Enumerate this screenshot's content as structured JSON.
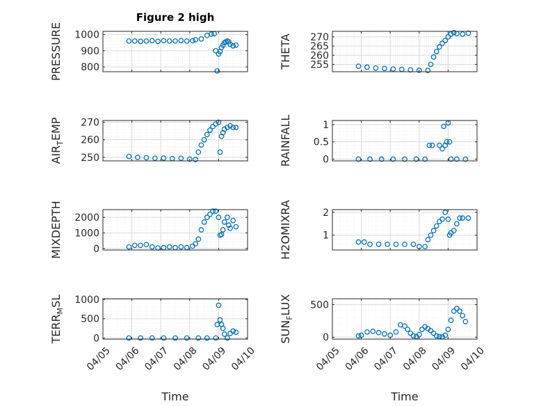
{
  "figure": {
    "title": "Figure 2 high"
  },
  "colors": {
    "marker": "#0072bd",
    "axis": "#262626",
    "grid_major": "#d9d9d9",
    "grid_minor": "#ececec"
  },
  "chart_data": [
    {
      "type": "scatter",
      "id": "pressure",
      "title": "Figure 2 high",
      "ylabel": {
        "main": "PRESSURE"
      },
      "xlim": [
        "04/05",
        "04/10"
      ],
      "x_range_days": [
        5,
        10
      ],
      "ylim": [
        770,
        1020
      ],
      "yticks": [
        800,
        900,
        1000
      ],
      "ytick_labels": [
        "800",
        "900",
        "1000"
      ],
      "xtick_labels_shown": false,
      "series": [
        {
          "x": [
            5.9,
            6.1,
            6.3,
            6.5,
            6.7,
            6.9,
            7.1,
            7.3,
            7.5,
            7.7,
            7.9,
            8.1,
            8.2,
            8.4,
            8.6,
            8.75,
            8.85,
            8.9,
            8.95,
            9.0,
            9.05,
            9.1,
            9.15,
            9.2,
            9.25,
            9.3,
            9.35,
            9.4,
            9.5,
            9.6
          ],
          "y": [
            960,
            960,
            958,
            960,
            962,
            958,
            962,
            960,
            960,
            963,
            960,
            962,
            968,
            973,
            995,
            1003,
            1005,
            900,
            775,
            880,
            895,
            920,
            935,
            950,
            955,
            960,
            955,
            940,
            930,
            935
          ]
        }
      ]
    },
    {
      "type": "scatter",
      "id": "theta",
      "ylabel": {
        "main": "THETA"
      },
      "xlim": [
        "04/05",
        "04/10"
      ],
      "x_range_days": [
        5,
        10
      ],
      "ylim": [
        251,
        273
      ],
      "yticks": [
        255,
        260,
        265,
        270
      ],
      "ytick_labels": [
        "255",
        "260",
        "265",
        "270"
      ],
      "xtick_labels_shown": false,
      "series": [
        {
          "x": [
            5.9,
            6.2,
            6.5,
            6.8,
            7.1,
            7.4,
            7.7,
            8.0,
            8.3,
            8.4,
            8.5,
            8.6,
            8.7,
            8.8,
            8.9,
            9.0,
            9.1,
            9.2,
            9.3,
            9.5,
            9.7
          ],
          "y": [
            254,
            253.5,
            253,
            252.8,
            252.5,
            252.3,
            252,
            251.8,
            251.7,
            255,
            259,
            262,
            264.5,
            266.5,
            268,
            270,
            271.5,
            272.3,
            271.8,
            271.5,
            272
          ]
        }
      ]
    },
    {
      "type": "scatter",
      "id": "air_temp",
      "ylabel": {
        "main": "AIR",
        "sub": "T",
        "tail": "EMP"
      },
      "xlim": [
        "04/05",
        "04/10"
      ],
      "x_range_days": [
        5,
        10
      ],
      "ylim": [
        248,
        271
      ],
      "yticks": [
        250,
        260,
        270
      ],
      "ytick_labels": [
        "250",
        "260",
        "270"
      ],
      "xtick_labels_shown": false,
      "series": [
        {
          "x": [
            5.9,
            6.2,
            6.5,
            6.8,
            7.1,
            7.4,
            7.7,
            8.0,
            8.2,
            8.3,
            8.4,
            8.5,
            8.6,
            8.7,
            8.8,
            8.9,
            9.0,
            9.05,
            9.1,
            9.15,
            9.2,
            9.3,
            9.4,
            9.5,
            9.6
          ],
          "y": [
            250.5,
            250,
            249.8,
            249.5,
            249.6,
            249.3,
            249.5,
            249,
            248.8,
            253,
            257,
            260,
            263,
            265.5,
            267.5,
            269,
            270,
            253,
            262,
            264,
            266,
            267,
            268,
            267,
            267
          ]
        }
      ]
    },
    {
      "type": "scatter",
      "id": "rainfall",
      "ylabel": {
        "main": "RAINFALL"
      },
      "xlim": [
        "04/05",
        "04/10"
      ],
      "x_range_days": [
        5,
        10
      ],
      "ylim": [
        -0.05,
        1.12
      ],
      "yticks": [
        0,
        0.5,
        1
      ],
      "ytick_labels": [
        "0",
        "0.5",
        "1"
      ],
      "xtick_labels_shown": false,
      "series": [
        {
          "x": [
            5.9,
            6.3,
            6.7,
            7.1,
            7.5,
            7.9,
            8.2,
            8.35,
            8.45,
            8.7,
            8.8,
            8.85,
            8.9,
            8.95,
            9.0,
            9.05,
            9.1,
            9.3,
            9.6
          ],
          "y": [
            0,
            0,
            0,
            0,
            0,
            0,
            0,
            0.4,
            0.4,
            0.4,
            0.3,
            0.95,
            0.4,
            0.5,
            1.05,
            0.5,
            0,
            0,
            0
          ]
        }
      ]
    },
    {
      "type": "scatter",
      "id": "mixdepth",
      "ylabel": {
        "main": "MIXDEPTH"
      },
      "xlim": [
        "04/05",
        "04/10"
      ],
      "x_range_days": [
        5,
        10
      ],
      "ylim": [
        -100,
        2500
      ],
      "yticks": [
        0,
        1000,
        2000
      ],
      "ytick_labels": [
        "0",
        "1000",
        "2000"
      ],
      "xtick_labels_shown": false,
      "series": [
        {
          "x": [
            5.9,
            6.1,
            6.3,
            6.5,
            6.7,
            6.9,
            7.1,
            7.3,
            7.5,
            7.7,
            7.9,
            8.1,
            8.2,
            8.3,
            8.4,
            8.5,
            8.6,
            8.7,
            8.8,
            8.9,
            9.0,
            9.05,
            9.1,
            9.15,
            9.2,
            9.3,
            9.35,
            9.4,
            9.5,
            9.6
          ],
          "y": [
            100,
            200,
            200,
            250,
            100,
            30,
            50,
            100,
            50,
            100,
            50,
            150,
            300,
            600,
            1200,
            1700,
            2000,
            2200,
            2400,
            2400,
            2000,
            850,
            900,
            1200,
            1700,
            2000,
            1500,
            1300,
            1800,
            1400
          ]
        }
      ]
    },
    {
      "type": "scatter",
      "id": "h2omixra",
      "ylabel": {
        "main": "H2OMIXRA"
      },
      "xlim": [
        "04/05",
        "04/10"
      ],
      "x_range_days": [
        5,
        10
      ],
      "ylim": [
        0.35,
        2.12
      ],
      "yticks": [
        1,
        2
      ],
      "ytick_labels": [
        "1",
        "2"
      ],
      "xtick_labels_shown": false,
      "series": [
        {
          "x": [
            5.9,
            6.1,
            6.3,
            6.6,
            6.9,
            7.2,
            7.5,
            7.8,
            8.0,
            8.2,
            8.3,
            8.4,
            8.5,
            8.6,
            8.7,
            8.8,
            8.9,
            9.0,
            9.05,
            9.1,
            9.2,
            9.3,
            9.4,
            9.5,
            9.7
          ],
          "y": [
            0.7,
            0.7,
            0.6,
            0.6,
            0.6,
            0.6,
            0.6,
            0.6,
            0.5,
            0.5,
            0.8,
            1.0,
            1.2,
            1.4,
            1.6,
            1.7,
            2.0,
            1.7,
            1.0,
            1.1,
            1.2,
            1.5,
            1.75,
            1.75,
            1.75
          ]
        }
      ]
    },
    {
      "type": "scatter",
      "id": "terr_msl",
      "ylabel": {
        "main": "TERR",
        "sub": "M",
        "tail": "SL"
      },
      "xlim": [
        "04/05",
        "04/10"
      ],
      "x_range_days": [
        5,
        10
      ],
      "ylim": [
        -30,
        1020
      ],
      "yticks": [
        0,
        500,
        1000
      ],
      "ytick_labels": [
        "0",
        "500",
        "1000"
      ],
      "xtick_labels": [
        "04/05",
        "04/06",
        "04/07",
        "04/08",
        "04/09",
        "04/10"
      ],
      "xlabel": "Time",
      "series": [
        {
          "x": [
            5.9,
            6.3,
            6.7,
            7.1,
            7.5,
            7.9,
            8.3,
            8.6,
            8.9,
            8.95,
            9.0,
            9.05,
            9.1,
            9.15,
            9.2,
            9.3,
            9.4,
            9.5,
            9.6
          ],
          "y": [
            0,
            0,
            0,
            0,
            0,
            0,
            0,
            0,
            0,
            350,
            850,
            470,
            350,
            250,
            100,
            0,
            120,
            180,
            150
          ]
        }
      ]
    },
    {
      "type": "scatter",
      "id": "sun_flux",
      "ylabel": {
        "main": "SUN",
        "sub": "F",
        "tail": "LUX"
      },
      "xlim": [
        "04/05",
        "04/10"
      ],
      "x_range_days": [
        5,
        10
      ],
      "ylim": [
        -30,
        590
      ],
      "yticks": [
        0,
        500
      ],
      "ytick_labels": [
        "0",
        "500"
      ],
      "xtick_labels": [
        "04/05",
        "04/06",
        "04/07",
        "04/08",
        "04/09",
        "04/10"
      ],
      "xlabel": "Time",
      "series": [
        {
          "x": [
            5.9,
            6.0,
            6.2,
            6.4,
            6.6,
            6.8,
            7.0,
            7.2,
            7.35,
            7.5,
            7.6,
            7.7,
            7.8,
            7.9,
            8.0,
            8.1,
            8.2,
            8.3,
            8.4,
            8.5,
            8.6,
            8.7,
            8.8,
            8.9,
            9.0,
            9.1,
            9.2,
            9.3,
            9.4,
            9.5,
            9.6
          ],
          "y": [
            20,
            30,
            80,
            90,
            70,
            50,
            30,
            80,
            190,
            170,
            120,
            60,
            20,
            10,
            40,
            120,
            160,
            130,
            100,
            60,
            20,
            10,
            5,
            30,
            120,
            260,
            400,
            440,
            400,
            330,
            240
          ]
        }
      ]
    }
  ]
}
